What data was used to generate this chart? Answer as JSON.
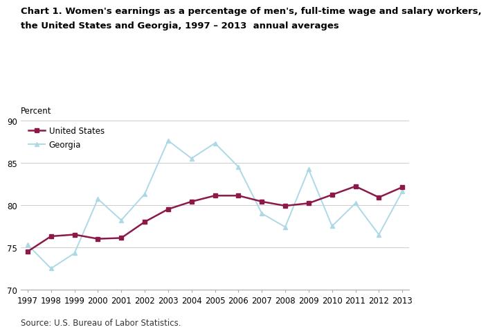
{
  "title_line1": "Chart 1. Women's earnings as a percentage of men's, full-time wage and salary workers,",
  "title_line2": "the United States and Georgia, 1997 – 2013  annual averages",
  "ylabel": "Percent",
  "source": "Source: U.S. Bureau of Labor Statistics.",
  "years": [
    1997,
    1998,
    1999,
    2000,
    2001,
    2002,
    2003,
    2004,
    2005,
    2006,
    2007,
    2008,
    2009,
    2010,
    2011,
    2012,
    2013
  ],
  "us_values": [
    74.5,
    76.3,
    76.5,
    76.0,
    76.1,
    78.0,
    79.5,
    80.4,
    81.1,
    81.1,
    80.4,
    79.9,
    80.2,
    81.2,
    82.2,
    80.9,
    82.1
  ],
  "ga_values": [
    75.3,
    72.5,
    74.3,
    80.7,
    78.2,
    81.3,
    87.6,
    85.5,
    87.3,
    84.5,
    79.0,
    77.4,
    84.2,
    77.5,
    80.2,
    76.5,
    81.6
  ],
  "us_color": "#8B1A4A",
  "ga_color": "#ADD8E6",
  "ylim": [
    70,
    90
  ],
  "yticks": [
    70,
    75,
    80,
    85,
    90
  ],
  "legend_us": "United States",
  "legend_ga": "Georgia",
  "title_fontsize": 9.5,
  "axis_fontsize": 8.5,
  "legend_fontsize": 8.5,
  "source_fontsize": 8.5,
  "linewidth_us": 1.8,
  "linewidth_ga": 1.4,
  "marker_size_us": 4,
  "marker_size_ga": 4
}
